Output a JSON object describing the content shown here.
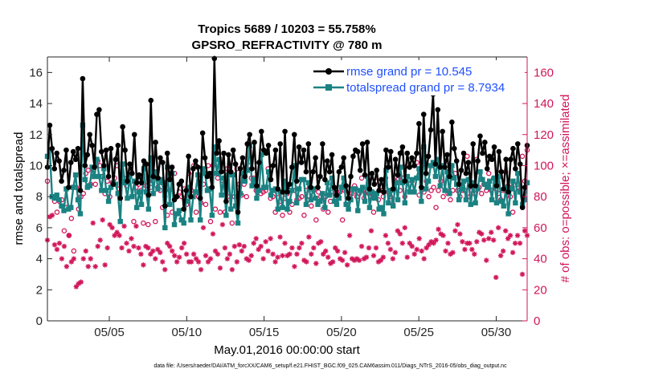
{
  "chart_data": {
    "type": "line",
    "title": "Tropics 5689 / 10203 = 55.758%",
    "subtitle": "GPSRO_REFRACTIVITY @ 780 m",
    "xlabel": "May.01,2016 00:00:00 start",
    "ylabel_left": "rmse and totalspread",
    "ylabel_right": "# of obs: o=possible; ×=assimilated",
    "footnote": "data file: /Users/raeder/DAI/ATM_forcXX/CAM6_setup/f.e21.FHIST_BGC.f09_025.CAM6assim.011/Diags_NTrS_2016-05/obs_diag_output.nc",
    "xlim": [
      1,
      32
    ],
    "ylim_left": [
      0,
      17
    ],
    "ylim_right": [
      0,
      170
    ],
    "x_ticks": [
      5,
      10,
      15,
      20,
      25,
      30
    ],
    "x_tick_labels": [
      "05/05",
      "05/10",
      "05/15",
      "05/20",
      "05/25",
      "05/30"
    ],
    "y_left_ticks": [
      0,
      2,
      4,
      6,
      8,
      10,
      12,
      14,
      16
    ],
    "y_right_ticks": [
      0,
      20,
      40,
      60,
      80,
      100,
      120,
      140,
      160
    ],
    "colors": {
      "rmse": "#000000",
      "spread": "#1a8282",
      "obs": "#d1165a",
      "legend_text": "#1f4fff"
    },
    "legend": [
      {
        "label": "rmse grand pr = 10.545",
        "series": "rmse"
      },
      {
        "label": "totalspread grand pr = 8.7934",
        "series": "spread"
      }
    ],
    "series": [
      {
        "name": "rmse",
        "axis": "left",
        "values": [
          9.9,
          12.6,
          11.1,
          9.8,
          10.8,
          10.3,
          9.0,
          9.7,
          11.0,
          8.6,
          10.2,
          10.9,
          10.4,
          11.1,
          8.4,
          15.6,
          10.0,
          10.7,
          12.0,
          11.3,
          9.9,
          13.3,
          13.6,
          10.9,
          10.0,
          11.0,
          9.3,
          11.1,
          8.8,
          10.4,
          11.3,
          7.9,
          12.5,
          11.0,
          9.0,
          10.1,
          9.5,
          12.0,
          8.9,
          9.4,
          8.9,
          10.3,
          10.1,
          8.1,
          14.2,
          9.3,
          11.5,
          9.2,
          10.5,
          10.2,
          7.4,
          10.8,
          9.1,
          9.9,
          7.8,
          8.0,
          8.8,
          9.0,
          7.2,
          8.4,
          10.6,
          8.0,
          9.8,
          10.3,
          9.9,
          7.9,
          12.1,
          10.5,
          9.3,
          9.5,
          8.6,
          16.9,
          10.8,
          11.6,
          9.6,
          10.8,
          7.7,
          10.7,
          9.6,
          11.0,
          10.1,
          7.0,
          9.8,
          10.5,
          9.3,
          11.4,
          12.0,
          9.8,
          11.5,
          8.7,
          10.2,
          12.2,
          11.0,
          10.8,
          11.3,
          9.1,
          10.0,
          11.0,
          8.5,
          11.4,
          8.3,
          12.2,
          8.3,
          8.8,
          9.9,
          12.0,
          9.0,
          11.2,
          10.2,
          11.0,
          9.6,
          11.4,
          8.6,
          9.6,
          10.5,
          8.6,
          9.3,
          11.4,
          9.1,
          10.3,
          9.6,
          10.7,
          8.6,
          8.1,
          9.6,
          9.9,
          10.5,
          8.7,
          7.9,
          9.3,
          10.6,
          11.0,
          10.9,
          9.7,
          11.4,
          9.4,
          11.5,
          8.5,
          9.5,
          8.8,
          9.7,
          8.4,
          9.1,
          8.3,
          11.0,
          9.9,
          10.9,
          8.5,
          10.4,
          9.4,
          10.8,
          11.2,
          9.0,
          10.8,
          9.9,
          10.5,
          10.0,
          10.8,
          12.7,
          8.6,
          13.3,
          9.5,
          10.6,
          12.3,
          14.6,
          10.1,
          13.6,
          9.9,
          12.2,
          9.9,
          10.7,
          9.3,
          12.8,
          11.1,
          10.3,
          8.8,
          9.7,
          10.8,
          9.5,
          10.2,
          8.7,
          11.4,
          8.7,
          10.3,
          11.9,
          10.8,
          11.5,
          9.8,
          10.6,
          10.4,
          11.2,
          8.7,
          10.9,
          9.6,
          8.5,
          10.4,
          8.3,
          10.4,
          11.1,
          9.8,
          11.4,
          10.1,
          7.3,
          8.6,
          11.3
        ]
      },
      {
        "name": "totalspread",
        "axis": "left",
        "values": [
          10.6,
          11.0,
          8.0,
          7.9,
          8.1,
          7.8,
          7.4,
          7.1,
          8.5,
          7.2,
          7.3,
          8.6,
          9.4,
          7.8,
          6.9,
          12.6,
          9.1,
          8.6,
          8.7,
          9.9,
          9.3,
          10.4,
          9.3,
          8.4,
          9.8,
          8.4,
          7.7,
          8.6,
          8.9,
          8.8,
          8.2,
          6.4,
          10.1,
          8.9,
          7.9,
          9.3,
          8.0,
          9.0,
          7.3,
          8.3,
          7.5,
          9.8,
          8.3,
          7.2,
          10.5,
          8.2,
          9.6,
          8.5,
          9.1,
          8.9,
          6.0,
          9.9,
          7.5,
          9.5,
          6.2,
          6.9,
          7.1,
          6.5,
          6.3,
          7.7,
          8.6,
          6.5,
          8.0,
          8.3,
          9.4,
          6.5,
          9.8,
          9.5,
          8.4,
          8.5,
          6.8,
          11.2,
          9.5,
          10.4,
          8.1,
          9.2,
          6.8,
          9.4,
          7.2,
          9.4,
          7.4,
          6.3,
          8.2,
          9.5,
          9.0,
          9.7,
          11.3,
          8.7,
          9.1,
          7.9,
          8.4,
          10.7,
          8.6,
          8.6,
          9.6,
          8.1,
          8.4,
          8.5,
          7.2,
          8.3,
          7.3,
          9.0,
          7.2,
          7.7,
          8.4,
          10.0,
          7.6,
          8.5,
          9.1,
          9.1,
          7.5,
          8.9,
          7.8,
          8.5,
          7.9,
          7.5,
          7.7,
          8.2,
          7.3,
          8.9,
          8.1,
          9.2,
          7.7,
          7.5,
          7.9,
          8.6,
          9.2,
          7.5,
          7.2,
          7.8,
          8.5,
          8.5,
          7.1,
          8.4,
          8.6,
          7.7,
          9.3,
          7.3,
          8.3,
          7.9,
          8.2,
          7.2,
          7.3,
          6.9,
          9.7,
          7.6,
          8.4,
          7.4,
          8.9,
          7.8,
          9.9,
          8.9,
          7.6,
          9.3,
          8.3,
          9.1,
          8.3,
          9.2,
          9.8,
          7.7,
          11.2,
          8.5,
          9.0,
          10.0,
          10.2,
          9.3,
          10.4,
          8.7,
          10.0,
          8.4,
          9.6,
          8.2,
          10.0,
          9.2,
          8.8,
          7.8,
          8.5,
          9.0,
          7.8,
          9.1,
          7.5,
          8.9,
          7.6,
          8.5,
          9.6,
          9.1,
          8.8,
          8.6,
          9.0,
          7.8,
          9.2,
          7.6,
          9.3,
          7.7,
          7.4,
          8.6,
          6.9,
          8.5,
          9.0,
          7.6,
          9.5,
          8.3,
          7.5,
          7.8,
          8.9
        ]
      },
      {
        "name": "obs_possible",
        "axis": "right",
        "values": [
          90,
          110,
          80,
          77,
          70,
          77,
          78,
          58,
          73,
          55,
          66,
          45,
          86,
          72,
          80,
          82,
          95,
          97,
          88,
          93,
          88,
          103,
          100,
          93,
          82,
          90,
          80,
          89,
          92,
          100,
          85,
          92,
          92,
          87,
          92,
          96,
          64,
          86,
          88,
          84,
          63,
          87,
          62,
          86,
          90,
          64,
          86,
          84,
          73,
          80,
          68,
          84,
          70,
          95,
          80,
          83,
          80,
          85,
          75,
          95,
          84,
          100,
          70,
          80,
          76,
          88,
          75,
          100,
          64,
          100,
          72,
          92,
          70,
          88,
          70,
          98,
          80,
          63,
          80,
          98,
          88,
          81,
          88,
          80,
          100,
          92,
          92,
          84,
          85,
          82,
          83,
          84,
          98,
          79,
          80,
          70,
          82,
          77,
          68,
          79,
          82,
          70,
          75,
          84,
          78,
          79,
          80,
          68,
          84,
          78,
          74,
          84,
          65,
          83,
          80,
          72,
          80,
          70,
          77,
          83,
          78,
          82,
          83,
          65,
          84,
          77,
          80,
          82,
          87,
          80,
          82,
          92,
          79,
          83,
          82,
          80,
          70,
          90,
          78,
          84,
          80,
          92,
          83,
          80,
          75,
          90,
          91,
          84,
          92,
          80,
          100,
          88,
          90,
          100,
          102,
          81,
          84,
          83,
          90,
          80,
          84,
          86,
          73,
          84,
          90,
          80,
          84,
          82,
          78,
          84,
          95,
          84,
          80,
          84,
          84,
          106,
          80,
          84,
          82,
          104,
          86,
          82,
          88,
          84,
          95,
          84,
          92,
          85,
          82,
          78,
          84,
          96,
          87,
          80,
          70,
          85,
          88,
          84,
          106,
          90,
          110
        ]
      },
      {
        "name": "obs_assimilated",
        "axis": "right",
        "values": [
          52,
          67,
          68,
          49,
          46,
          50,
          40,
          48,
          35,
          55,
          38,
          40,
          22,
          24,
          25,
          40,
          45,
          35,
          40,
          63,
          35,
          48,
          52,
          65,
          36,
          47,
          62,
          60,
          55,
          57,
          55,
          47,
          61,
          50,
          45,
          53,
          48,
          61,
          47,
          43,
          36,
          48,
          47,
          43,
          45,
          40,
          46,
          44,
          38,
          33,
          50,
          48,
          45,
          42,
          38,
          41,
          47,
          50,
          43,
          38,
          38,
          43,
          40,
          38,
          33,
          60,
          42,
          38,
          40,
          56,
          45,
          43,
          34,
          62,
          47,
          40,
          43,
          33,
          48,
          38,
          49,
          45,
          48,
          40,
          39,
          42,
          50,
          53,
          46,
          48,
          40,
          51,
          45,
          53,
          43,
          38,
          41,
          54,
          42,
          50,
          42,
          43,
          47,
          35,
          43,
          47,
          50,
          39,
          38,
          54,
          43,
          47,
          37,
          50,
          51,
          43,
          45,
          41,
          37,
          38,
          47,
          45,
          40,
          39,
          44,
          36,
          55,
          40,
          39,
          40,
          39,
          48,
          40,
          41,
          47,
          58,
          42,
          47,
          38,
          39,
          41,
          55,
          50,
          46,
          40,
          44,
          58,
          56,
          50,
          60,
          41,
          50,
          48,
          43,
          46,
          53,
          45,
          40,
          47,
          49,
          51,
          50,
          52,
          59,
          56,
          55,
          45,
          50,
          43,
          44,
          58,
          62,
          56,
          51,
          46,
          50,
          50,
          46,
          43,
          51,
          57,
          56,
          52,
          39,
          53,
          57,
          52,
          28,
          60,
          42,
          45,
          58,
          53,
          55,
          44,
          50,
          55,
          50,
          30,
          58,
          55
        ]
      }
    ]
  }
}
